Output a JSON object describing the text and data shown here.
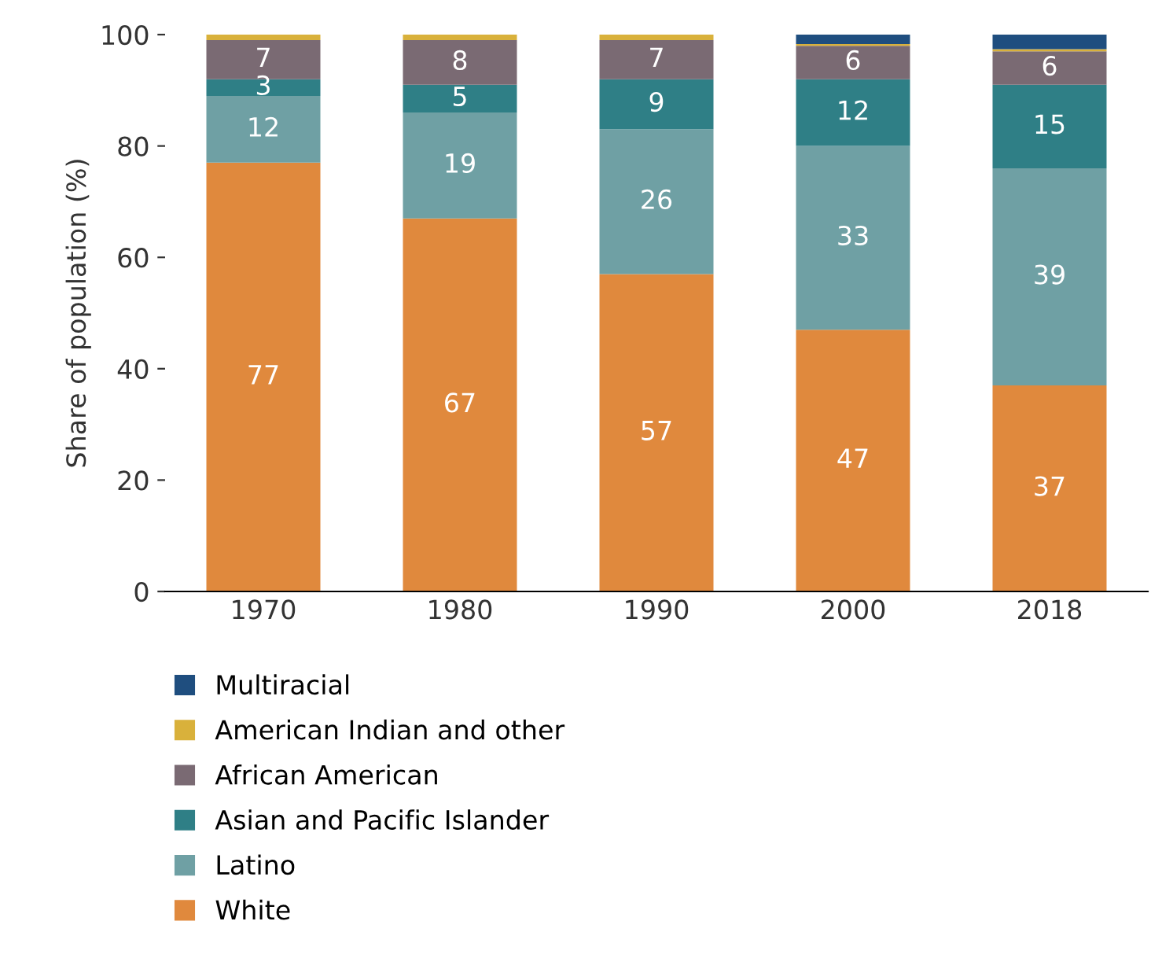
{
  "chart_data": {
    "type": "bar",
    "stacked": true,
    "ylabel": "Share of population (%)",
    "categories": [
      "1970",
      "1980",
      "1990",
      "2000",
      "2018"
    ],
    "ylim": [
      0,
      100
    ],
    "yticks": [
      0,
      20,
      40,
      60,
      80,
      100
    ],
    "grid": false,
    "legend": "bottom",
    "series": [
      {
        "name": "White",
        "color": "#e0893d",
        "values": [
          77,
          67,
          57,
          47,
          37
        ],
        "value_labels": [
          "77",
          "67",
          "57",
          "47",
          "37"
        ]
      },
      {
        "name": "Latino",
        "color": "#6fa0a4",
        "values": [
          12,
          19,
          26,
          33,
          39
        ],
        "value_labels": [
          "12",
          "19",
          "26",
          "33",
          "39"
        ]
      },
      {
        "name": "Asian and Pacific Islander",
        "color": "#2f7f86",
        "values": [
          3,
          5,
          9,
          12,
          15
        ],
        "value_labels": [
          "3",
          "5",
          "9",
          "12",
          "15"
        ]
      },
      {
        "name": "African American",
        "color": "#7a6a73",
        "values": [
          7,
          8,
          7,
          6,
          6
        ],
        "value_labels": [
          "7",
          "8",
          "7",
          "6",
          "6"
        ]
      },
      {
        "name": "American Indian and other",
        "color": "#d9b13b",
        "values": [
          1,
          1,
          1,
          0.3,
          0.4
        ],
        "value_labels": [
          null,
          null,
          null,
          null,
          null
        ]
      },
      {
        "name": "Multiracial",
        "color": "#1f4e7f",
        "values": [
          0,
          0,
          0,
          1.7,
          2.6
        ],
        "value_labels": [
          null,
          null,
          null,
          null,
          null
        ]
      }
    ]
  }
}
